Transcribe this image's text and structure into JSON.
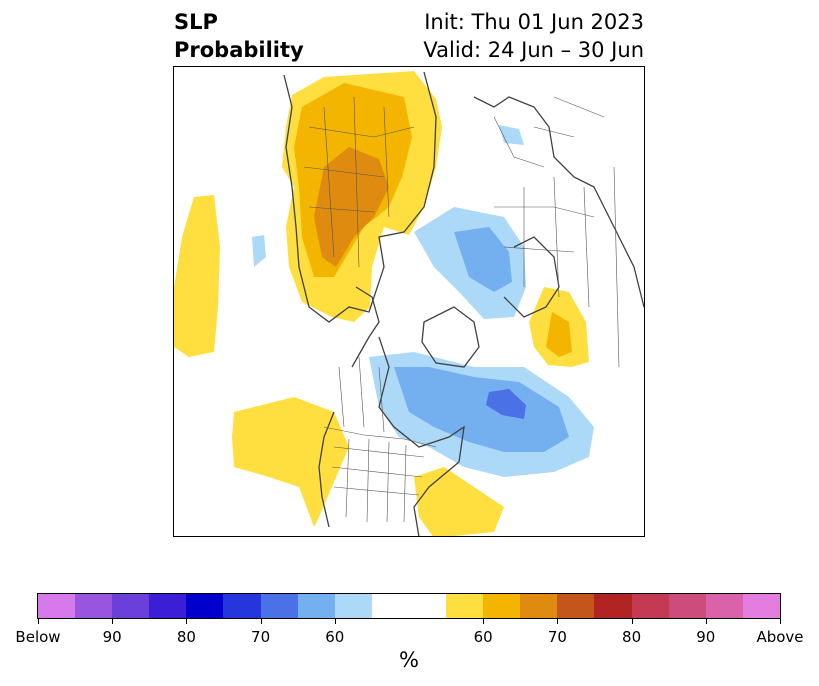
{
  "title": {
    "left_line1": "SLP",
    "left_line2": "Probability",
    "right_line1": "Init: Thu 01 Jun 2023",
    "right_line2": "Valid: 24 Jun – 30 Jun"
  },
  "colorbar": {
    "unit": "%",
    "colors": [
      "#d67aeb",
      "#9a55df",
      "#6b3fd9",
      "#3a1fd6",
      "#0000cd",
      "#2536dc",
      "#4a72e6",
      "#74aff0",
      "#acd9f8",
      "#ffffff",
      "#ffdf3f",
      "#f3b500",
      "#df8b10",
      "#c4561b",
      "#b02424",
      "#c43a52",
      "#cc4c7c",
      "#da62aa",
      "#e37de0"
    ],
    "ticks": [
      {
        "label": "Below"
      },
      {
        "label": "90"
      },
      {
        "label": "80"
      },
      {
        "label": "70"
      },
      {
        "label": "60"
      },
      {
        "label": "60"
      },
      {
        "label": "70"
      },
      {
        "label": "80"
      },
      {
        "label": "90"
      },
      {
        "label": "Above"
      }
    ]
  }
}
